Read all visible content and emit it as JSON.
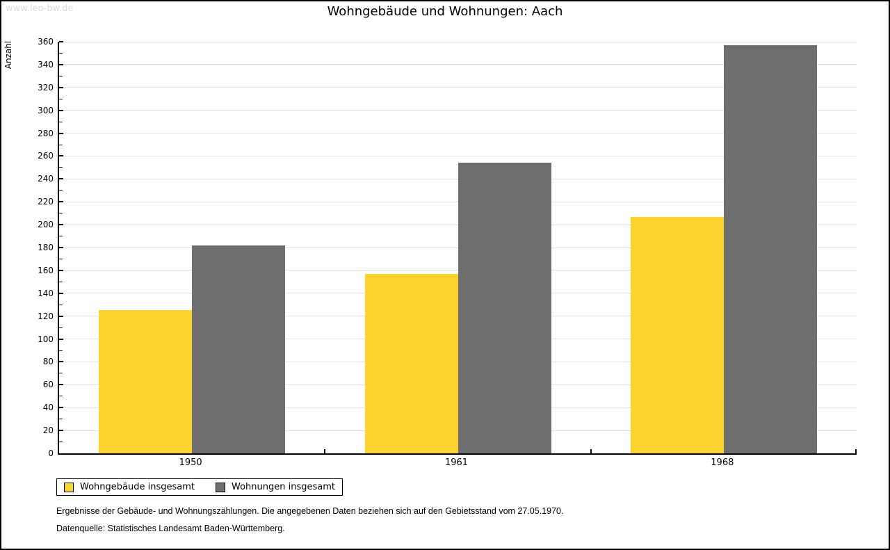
{
  "watermark": "www.leo-bw.de",
  "title": "Wohngebäude und Wohnungen: Aach",
  "y_axis_label": "Anzahl",
  "footer": {
    "line1": "Ergebnisse der Gebäude- und Wohnungszählungen. Die angegebenen Daten beziehen sich auf den Gebietsstand vom 27.05.1970.",
    "line2": "Datenquelle: Statistisches Landesamt Baden-Württemberg."
  },
  "colors": {
    "bar_yellow": "#fcd32e",
    "bar_gray": "#6e6e6e",
    "gridline": "#e0e0e0",
    "axis": "#000000",
    "watermark": "#dcdcdc",
    "frame_border": "#000000"
  },
  "chart_data": {
    "type": "bar",
    "title": "Wohngebäude und Wohnungen: Aach",
    "ylabel": "Anzahl",
    "xlabel": "",
    "categories": [
      "1950",
      "1961",
      "1968"
    ],
    "series": [
      {
        "name": "Wohngebäude insgesamt",
        "color": "#fcd32e",
        "values": [
          125,
          157,
          207
        ]
      },
      {
        "name": "Wohnungen insgesamt",
        "color": "#6e6e6e",
        "values": [
          182,
          254,
          357
        ]
      }
    ],
    "ylim": [
      0,
      360
    ],
    "ytick_step": 20,
    "minor_tick_step": 10,
    "yticks": [
      0,
      20,
      40,
      60,
      80,
      100,
      120,
      140,
      160,
      180,
      200,
      220,
      240,
      260,
      280,
      300,
      320,
      340,
      360
    ],
    "grid": true,
    "legend_position": "bottom-left"
  }
}
